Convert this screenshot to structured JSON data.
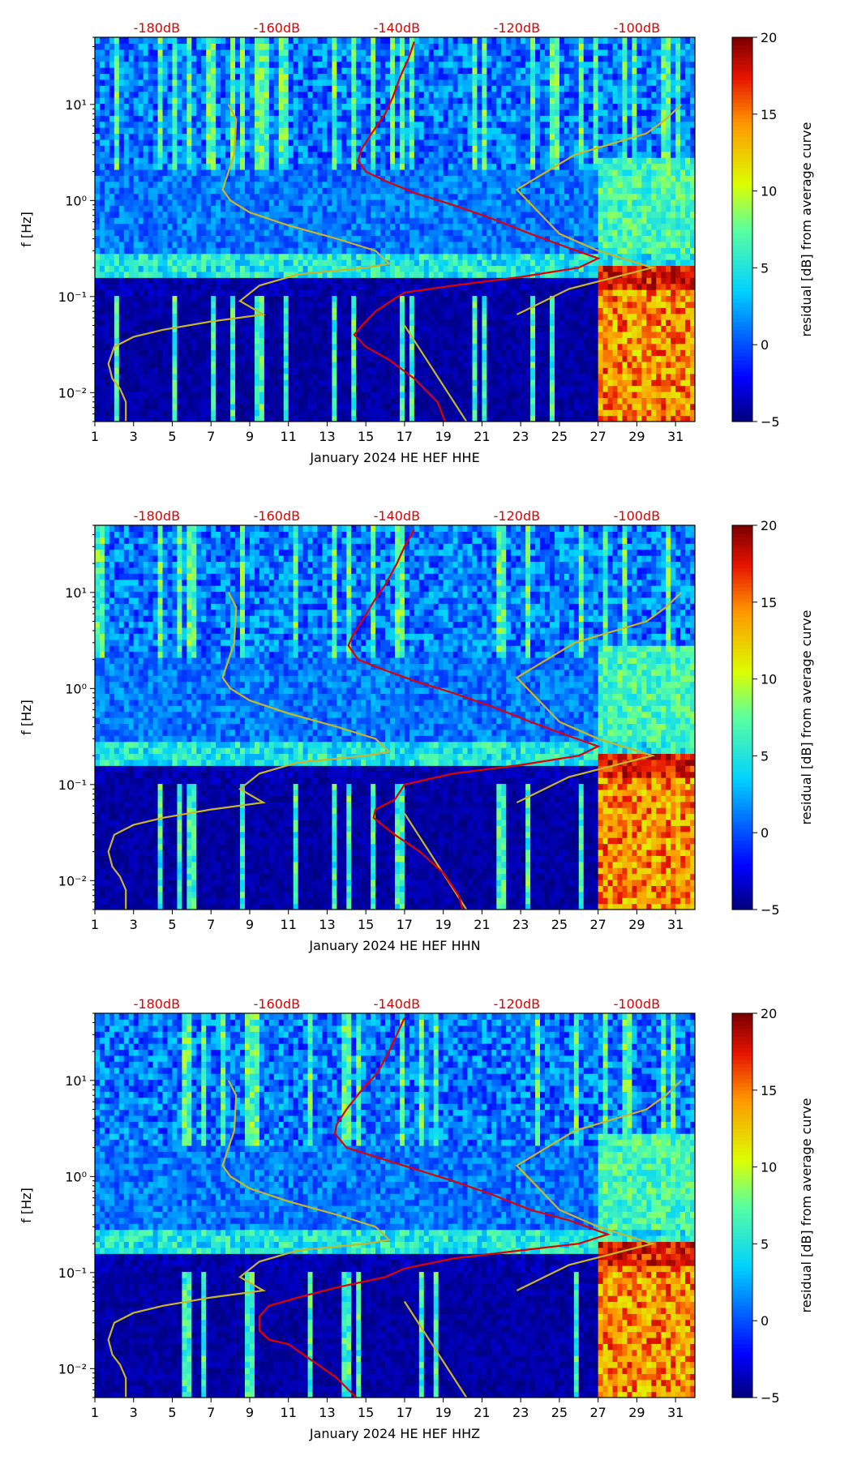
{
  "chart_data": [
    {
      "type": "heatmap",
      "title": "January 2024 HE HEF  HHE",
      "xlabel": "January 2024 HE HEF  HHE",
      "ylabel": "f [Hz]",
      "colorbar_label": "residual [dB] from average curve",
      "colorbar_range": [
        -5,
        20
      ],
      "colorbar_ticks": [
        "20",
        "15",
        "10",
        "5",
        "0",
        "−5"
      ],
      "x_ticks": [
        "1",
        "3",
        "5",
        "7",
        "9",
        "11",
        "13",
        "15",
        "17",
        "19",
        "21",
        "23",
        "25",
        "27",
        "29",
        "31"
      ],
      "xlim": [
        1,
        32
      ],
      "y_scale": "log",
      "ylim": [
        0.005,
        50
      ],
      "y_ticks": [
        "10¹",
        "10⁰",
        "10⁻¹",
        "10⁻²"
      ],
      "top_db_labels": [
        "-180dB",
        "-160dB",
        "-140dB",
        "-120dB",
        "-100dB"
      ],
      "top_db_scale": {
        "db_ticks": [
          -180,
          -160,
          -140,
          -120,
          -100
        ],
        "day_positions": [
          4.2,
          10.4,
          16.6,
          22.8,
          29.0
        ]
      },
      "hot_band_day_start": 27,
      "red_curve": [
        [
          17.5,
          45
        ],
        [
          17.2,
          30
        ],
        [
          16.8,
          20
        ],
        [
          16.4,
          12
        ],
        [
          16.0,
          8
        ],
        [
          15.3,
          5
        ],
        [
          14.8,
          3.5
        ],
        [
          14.6,
          2.6
        ],
        [
          15.0,
          2.0
        ],
        [
          16.0,
          1.6
        ],
        [
          17.5,
          1.2
        ],
        [
          19.5,
          0.9
        ],
        [
          21.5,
          0.65
        ],
        [
          23.5,
          0.45
        ],
        [
          25.5,
          0.32
        ],
        [
          27.0,
          0.25
        ],
        [
          26.0,
          0.2
        ],
        [
          23.0,
          0.16
        ],
        [
          19.5,
          0.13
        ],
        [
          17.0,
          0.11
        ],
        [
          16.3,
          0.09
        ],
        [
          15.5,
          0.07
        ],
        [
          14.8,
          0.05
        ],
        [
          14.4,
          0.04
        ],
        [
          15.0,
          0.03
        ],
        [
          16.2,
          0.022
        ],
        [
          17.5,
          0.014
        ],
        [
          18.7,
          0.008
        ],
        [
          19.1,
          0.005
        ]
      ],
      "yellow_curve": [
        [
          7.9,
          10
        ],
        [
          8.3,
          7
        ],
        [
          8.2,
          3
        ],
        [
          7.6,
          1.3
        ],
        [
          8.0,
          1.0
        ],
        [
          9.0,
          0.75
        ],
        [
          11.0,
          0.55
        ],
        [
          13.5,
          0.4
        ],
        [
          15.5,
          0.3
        ],
        [
          16.2,
          0.22
        ],
        [
          15.0,
          0.2
        ],
        [
          11.5,
          0.17
        ],
        [
          9.5,
          0.13
        ],
        [
          8.5,
          0.09
        ],
        [
          9.7,
          0.065
        ],
        [
          7.0,
          0.055
        ],
        [
          4.5,
          0.045
        ],
        [
          3.0,
          0.038
        ],
        [
          2.0,
          0.03
        ],
        [
          1.7,
          0.02
        ],
        [
          1.9,
          0.014
        ],
        [
          2.3,
          0.011
        ],
        [
          2.6,
          0.008
        ],
        [
          2.6,
          0.005
        ]
      ],
      "yellow_curve_2": [
        [
          17.0,
          0.05
        ],
        [
          20.2,
          0.005
        ]
      ],
      "yellow_curve_3": [
        [
          22.8,
          0.065
        ],
        [
          25.5,
          0.12
        ],
        [
          29.8,
          0.2
        ],
        [
          27.0,
          0.3
        ],
        [
          25.0,
          0.45
        ],
        [
          22.8,
          1.3
        ],
        [
          25.8,
          3
        ],
        [
          29.5,
          5
        ],
        [
          30.5,
          7
        ],
        [
          31.3,
          10
        ]
      ]
    },
    {
      "type": "heatmap",
      "title": "January 2024 HE HEF  HHN",
      "xlabel": "January 2024 HE HEF  HHN",
      "ylabel": "f [Hz]",
      "colorbar_label": "residual [dB] from average curve",
      "colorbar_range": [
        -5,
        20
      ],
      "colorbar_ticks": [
        "20",
        "15",
        "10",
        "5",
        "0",
        "−5"
      ],
      "x_ticks": [
        "1",
        "3",
        "5",
        "7",
        "9",
        "11",
        "13",
        "15",
        "17",
        "19",
        "21",
        "23",
        "25",
        "27",
        "29",
        "31"
      ],
      "xlim": [
        1,
        32
      ],
      "y_scale": "log",
      "ylim": [
        0.005,
        50
      ],
      "y_ticks": [
        "10¹",
        "10⁰",
        "10⁻¹",
        "10⁻²"
      ],
      "top_db_labels": [
        "-180dB",
        "-160dB",
        "-140dB",
        "-120dB",
        "-100dB"
      ],
      "top_db_scale": {
        "db_ticks": [
          -180,
          -160,
          -140,
          -120,
          -100
        ],
        "day_positions": [
          4.2,
          10.4,
          16.6,
          22.8,
          29.0
        ]
      },
      "hot_band_day_start": 27,
      "red_curve": [
        [
          17.5,
          45
        ],
        [
          17.0,
          30
        ],
        [
          16.6,
          20
        ],
        [
          16.0,
          12
        ],
        [
          15.4,
          8
        ],
        [
          14.8,
          5
        ],
        [
          14.3,
          3.5
        ],
        [
          14.1,
          2.8
        ],
        [
          14.6,
          2.0
        ],
        [
          15.8,
          1.6
        ],
        [
          17.5,
          1.2
        ],
        [
          19.5,
          0.9
        ],
        [
          21.5,
          0.65
        ],
        [
          23.5,
          0.45
        ],
        [
          25.5,
          0.32
        ],
        [
          27.0,
          0.25
        ],
        [
          26.0,
          0.2
        ],
        [
          23.0,
          0.16
        ],
        [
          19.5,
          0.13
        ],
        [
          17.0,
          0.1
        ],
        [
          16.5,
          0.07
        ],
        [
          15.5,
          0.055
        ],
        [
          15.4,
          0.045
        ],
        [
          16.5,
          0.03
        ],
        [
          17.8,
          0.02
        ],
        [
          19.0,
          0.012
        ],
        [
          19.8,
          0.007
        ],
        [
          20.0,
          0.005
        ]
      ],
      "yellow_curve": [
        [
          7.9,
          10
        ],
        [
          8.3,
          7
        ],
        [
          8.2,
          3
        ],
        [
          7.6,
          1.3
        ],
        [
          8.0,
          1.0
        ],
        [
          9.0,
          0.75
        ],
        [
          11.0,
          0.55
        ],
        [
          13.5,
          0.4
        ],
        [
          15.5,
          0.3
        ],
        [
          16.2,
          0.22
        ],
        [
          15.0,
          0.2
        ],
        [
          11.5,
          0.17
        ],
        [
          9.5,
          0.13
        ],
        [
          8.5,
          0.09
        ],
        [
          9.7,
          0.065
        ],
        [
          7.0,
          0.055
        ],
        [
          4.5,
          0.045
        ],
        [
          3.0,
          0.038
        ],
        [
          2.0,
          0.03
        ],
        [
          1.7,
          0.02
        ],
        [
          1.9,
          0.014
        ],
        [
          2.3,
          0.011
        ],
        [
          2.6,
          0.008
        ],
        [
          2.6,
          0.005
        ]
      ],
      "yellow_curve_2": [
        [
          17.0,
          0.05
        ],
        [
          20.2,
          0.005
        ]
      ],
      "yellow_curve_3": [
        [
          22.8,
          0.065
        ],
        [
          25.5,
          0.12
        ],
        [
          29.8,
          0.2
        ],
        [
          27.0,
          0.3
        ],
        [
          25.0,
          0.45
        ],
        [
          22.8,
          1.3
        ],
        [
          25.8,
          3
        ],
        [
          29.5,
          5
        ],
        [
          30.5,
          7
        ],
        [
          31.3,
          10
        ]
      ]
    },
    {
      "type": "heatmap",
      "title": "January 2024 HE HEF  HHZ",
      "xlabel": "January 2024 HE HEF  HHZ",
      "ylabel": "f [Hz]",
      "colorbar_label": "residual [dB] from average curve",
      "colorbar_range": [
        -5,
        20
      ],
      "colorbar_ticks": [
        "20",
        "15",
        "10",
        "5",
        "0",
        "−5"
      ],
      "x_ticks": [
        "1",
        "3",
        "5",
        "7",
        "9",
        "11",
        "13",
        "15",
        "17",
        "19",
        "21",
        "23",
        "25",
        "27",
        "29",
        "31"
      ],
      "xlim": [
        1,
        32
      ],
      "y_scale": "log",
      "ylim": [
        0.005,
        50
      ],
      "y_ticks": [
        "10¹",
        "10⁰",
        "10⁻¹",
        "10⁻²"
      ],
      "top_db_labels": [
        "-180dB",
        "-160dB",
        "-140dB",
        "-120dB",
        "-100dB"
      ],
      "top_db_scale": {
        "db_ticks": [
          -180,
          -160,
          -140,
          -120,
          -100
        ],
        "day_positions": [
          4.2,
          10.4,
          16.6,
          22.8,
          29.0
        ]
      },
      "hot_band_day_start": 27,
      "red_curve": [
        [
          17.0,
          45
        ],
        [
          16.6,
          30
        ],
        [
          16.2,
          20
        ],
        [
          15.6,
          12
        ],
        [
          14.8,
          8
        ],
        [
          14.0,
          5
        ],
        [
          13.5,
          3.5
        ],
        [
          13.4,
          2.8
        ],
        [
          14.0,
          2.0
        ],
        [
          15.5,
          1.6
        ],
        [
          17.5,
          1.2
        ],
        [
          19.5,
          0.9
        ],
        [
          21.5,
          0.65
        ],
        [
          23.5,
          0.45
        ],
        [
          25.5,
          0.35
        ],
        [
          27.5,
          0.25
        ],
        [
          26.0,
          0.2
        ],
        [
          23.0,
          0.17
        ],
        [
          19.5,
          0.14
        ],
        [
          17.0,
          0.11
        ],
        [
          16.0,
          0.09
        ],
        [
          13.5,
          0.07
        ],
        [
          11.5,
          0.055
        ],
        [
          10.0,
          0.045
        ],
        [
          9.5,
          0.035
        ],
        [
          9.5,
          0.025
        ],
        [
          10.0,
          0.02
        ],
        [
          11.0,
          0.018
        ],
        [
          12.0,
          0.013
        ],
        [
          13.5,
          0.008
        ],
        [
          14.5,
          0.005
        ]
      ],
      "yellow_curve": [
        [
          7.9,
          10
        ],
        [
          8.3,
          7
        ],
        [
          8.2,
          3
        ],
        [
          7.6,
          1.3
        ],
        [
          8.0,
          1.0
        ],
        [
          9.0,
          0.75
        ],
        [
          11.0,
          0.55
        ],
        [
          13.5,
          0.4
        ],
        [
          15.5,
          0.3
        ],
        [
          16.2,
          0.22
        ],
        [
          15.0,
          0.2
        ],
        [
          11.5,
          0.17
        ],
        [
          9.5,
          0.13
        ],
        [
          8.5,
          0.09
        ],
        [
          9.7,
          0.065
        ],
        [
          7.0,
          0.055
        ],
        [
          4.5,
          0.045
        ],
        [
          3.0,
          0.038
        ],
        [
          2.0,
          0.03
        ],
        [
          1.7,
          0.02
        ],
        [
          1.9,
          0.014
        ],
        [
          2.3,
          0.011
        ],
        [
          2.6,
          0.008
        ],
        [
          2.6,
          0.005
        ]
      ],
      "yellow_curve_2": [
        [
          17.0,
          0.05
        ],
        [
          20.2,
          0.005
        ]
      ],
      "yellow_curve_3": [
        [
          22.8,
          0.065
        ],
        [
          25.5,
          0.12
        ],
        [
          29.8,
          0.2
        ],
        [
          27.0,
          0.3
        ],
        [
          25.0,
          0.45
        ],
        [
          22.8,
          1.3
        ],
        [
          25.8,
          3
        ],
        [
          29.5,
          5
        ],
        [
          30.5,
          7
        ],
        [
          31.3,
          10
        ]
      ]
    }
  ]
}
